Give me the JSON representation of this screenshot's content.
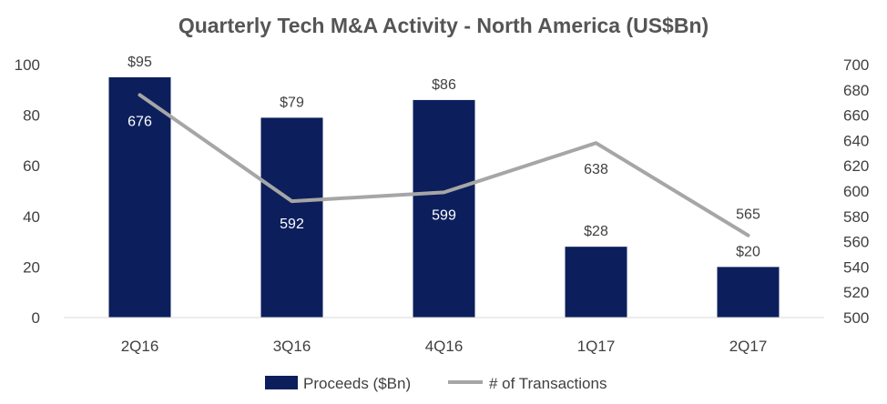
{
  "chart_data": {
    "type": "bar",
    "title": "Quarterly Tech M&A Activity - North America (US$Bn)",
    "categories": [
      "2Q16",
      "3Q16",
      "4Q16",
      "1Q17",
      "2Q17"
    ],
    "series": [
      {
        "name": "Proceeds ($Bn)",
        "type": "bar",
        "axis": "left",
        "values": [
          95,
          79,
          86,
          28,
          20
        ],
        "labels": [
          "$95",
          "$79",
          "$86",
          "$28",
          "$20"
        ],
        "color": "#0c1f5c"
      },
      {
        "name": "# of Transactions",
        "type": "line",
        "axis": "right",
        "values": [
          676,
          592,
          599,
          638,
          565
        ],
        "labels": [
          "676",
          "592",
          "599",
          "638",
          "565"
        ],
        "color": "#a6a6a6"
      }
    ],
    "y_left": {
      "min": 0,
      "max": 100,
      "ticks": [
        0,
        20,
        40,
        60,
        80,
        100
      ]
    },
    "y_right": {
      "min": 500,
      "max": 700,
      "ticks": [
        500,
        520,
        540,
        560,
        580,
        600,
        620,
        640,
        660,
        680,
        700
      ]
    },
    "grid": false,
    "legend": "bottom"
  }
}
